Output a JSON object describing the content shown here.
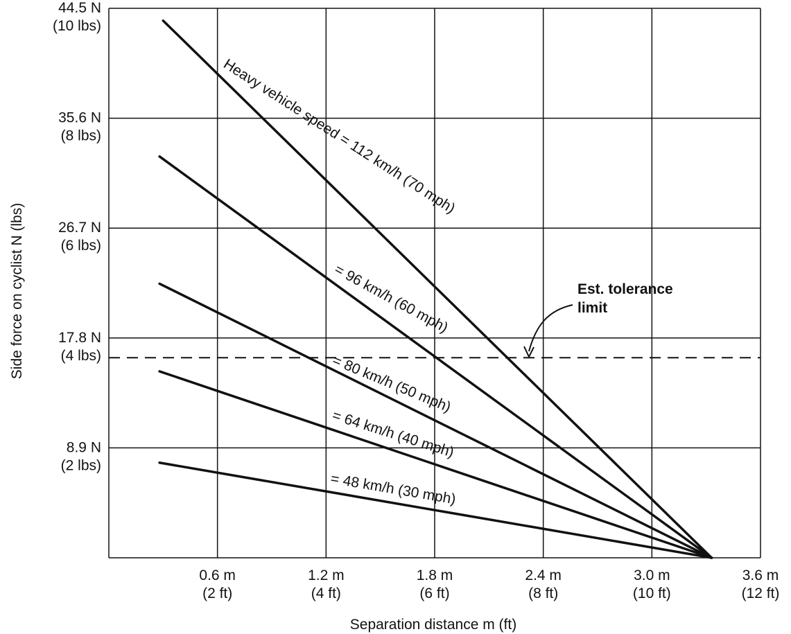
{
  "chart_data": {
    "type": "line",
    "title": "",
    "xlabel": "Separation distance m (ft)",
    "ylabel": "Side force on cyclist  N (lbs)",
    "xlim": [
      0,
      3.6
    ],
    "ylim": [
      0,
      44.5
    ],
    "grid": true,
    "x_ticks": [
      {
        "value": 0.6,
        "line1": "0.6 m",
        "line2": "(2 ft)"
      },
      {
        "value": 1.2,
        "line1": "1.2 m",
        "line2": "(4 ft)"
      },
      {
        "value": 1.8,
        "line1": "1.8 m",
        "line2": "(6 ft)"
      },
      {
        "value": 2.4,
        "line1": "2.4 m",
        "line2": "(8 ft)"
      },
      {
        "value": 3.0,
        "line1": "3.0 m",
        "line2": "(10 ft)"
      },
      {
        "value": 3.6,
        "line1": "3.6 m",
        "line2": "(12 ft)"
      }
    ],
    "y_ticks": [
      {
        "value": 8.9,
        "line1": "8.9 N",
        "line2": "(2 lbs)"
      },
      {
        "value": 17.8,
        "line1": "17.8 N",
        "line2": "(4 lbs)"
      },
      {
        "value": 26.7,
        "line1": "26.7 N",
        "line2": "(6 lbs)"
      },
      {
        "value": 35.6,
        "line1": "35.6 N",
        "line2": "(8 lbs)"
      },
      {
        "value": 44.5,
        "line1": "44.5 N",
        "line2": "(10 lbs)"
      }
    ],
    "series": [
      {
        "label": "Heavy vehicle speed = 112 km/h (70 mph)",
        "x": [
          0.3,
          3.33
        ],
        "y": [
          43.5,
          0
        ]
      },
      {
        "label": "= 96 km/h (60 mph)",
        "x": [
          0.28,
          3.33
        ],
        "y": [
          32.5,
          0
        ]
      },
      {
        "label": "= 80 km/h (50 mph)",
        "x": [
          0.28,
          3.33
        ],
        "y": [
          22.2,
          0
        ]
      },
      {
        "label": "= 64 km/h (40 mph)",
        "x": [
          0.28,
          3.33
        ],
        "y": [
          15.1,
          0
        ]
      },
      {
        "label": "= 48 km/h (30 mph)",
        "x": [
          0.28,
          3.33
        ],
        "y": [
          7.7,
          0
        ]
      }
    ],
    "reference_line": {
      "y": 16.2,
      "style": "dashed",
      "label_line1": "Est. tolerance",
      "label_line2": "limit"
    }
  }
}
